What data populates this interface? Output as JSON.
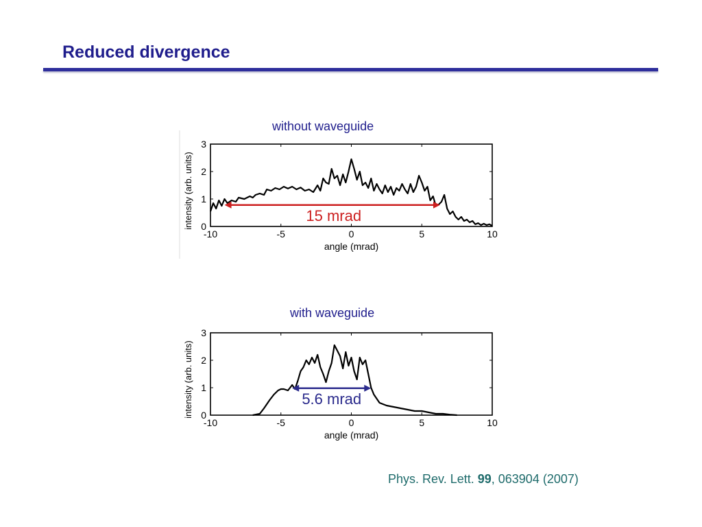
{
  "slide": {
    "title": "Reduced divergence"
  },
  "citation": {
    "journal": "Phys. Rev. Lett.",
    "volume": "99",
    "rest": ", 063904 (2007)"
  },
  "chart_data": [
    {
      "type": "line",
      "title": "without waveguide",
      "xlabel": "angle (mrad)",
      "ylabel": "intensity (arb. units)",
      "xlim": [
        -10,
        10
      ],
      "ylim": [
        0,
        3
      ],
      "xticks": [
        -10,
        -5,
        0,
        5,
        10
      ],
      "yticks": [
        0,
        1,
        2,
        3
      ],
      "annotation": {
        "text": "15 mrad",
        "from": -9.0,
        "to": 6.3,
        "y": 0.78,
        "color": "#cc1f1f"
      },
      "series": [
        {
          "x": [
            -10,
            -9.8,
            -9.6,
            -9.4,
            -9.2,
            -9.0,
            -8.8,
            -8.5,
            -8.2,
            -8.0,
            -7.6,
            -7.2,
            -7.0,
            -6.8,
            -6.5,
            -6.2,
            -6.0,
            -5.7,
            -5.4,
            -5.1,
            -4.8,
            -4.5,
            -4.2,
            -3.9,
            -3.6,
            -3.3,
            -3.0,
            -2.7,
            -2.4,
            -2.2,
            -2.0,
            -1.8,
            -1.6,
            -1.4,
            -1.2,
            -1.0,
            -0.8,
            -0.6,
            -0.4,
            -0.2,
            0.0,
            0.2,
            0.4,
            0.6,
            0.8,
            1.0,
            1.2,
            1.4,
            1.6,
            1.8,
            2.0,
            2.2,
            2.4,
            2.6,
            2.8,
            3.0,
            3.2,
            3.4,
            3.6,
            3.8,
            4.0,
            4.2,
            4.4,
            4.6,
            4.8,
            5.0,
            5.2,
            5.4,
            5.6,
            5.8,
            6.0,
            6.2,
            6.4,
            6.6,
            6.8,
            7.0,
            7.2,
            7.4,
            7.6,
            7.8,
            8.0,
            8.2,
            8.4,
            8.6,
            8.8,
            9.0,
            9.2,
            9.4,
            9.6,
            9.8,
            10.0
          ],
          "y": [
            0.55,
            0.85,
            0.65,
            0.95,
            0.75,
            1.0,
            0.85,
            0.95,
            0.9,
            1.05,
            1.0,
            1.1,
            1.05,
            1.15,
            1.2,
            1.15,
            1.35,
            1.3,
            1.4,
            1.35,
            1.45,
            1.38,
            1.45,
            1.35,
            1.42,
            1.3,
            1.35,
            1.25,
            1.5,
            1.3,
            1.75,
            1.6,
            1.55,
            2.1,
            1.75,
            1.85,
            1.5,
            1.9,
            1.6,
            2.0,
            2.45,
            2.1,
            1.7,
            2.0,
            1.5,
            1.6,
            1.4,
            1.75,
            1.3,
            1.55,
            1.35,
            1.2,
            1.5,
            1.25,
            1.45,
            1.15,
            1.4,
            1.3,
            1.55,
            1.35,
            1.2,
            1.55,
            1.25,
            1.45,
            1.85,
            1.6,
            1.3,
            1.45,
            0.95,
            1.1,
            0.75,
            0.8,
            0.9,
            1.15,
            0.65,
            0.45,
            0.55,
            0.35,
            0.25,
            0.35,
            0.2,
            0.25,
            0.15,
            0.2,
            0.08,
            0.12,
            0.05,
            0.1,
            0.05,
            0.08,
            0.02
          ]
        }
      ]
    },
    {
      "type": "line",
      "title": "with waveguide",
      "xlabel": "angle (mrad)",
      "ylabel": "intensity (arb. units)",
      "xlim": [
        -10,
        10
      ],
      "ylim": [
        0,
        3
      ],
      "xticks": [
        -10,
        -5,
        0,
        5,
        10
      ],
      "yticks": [
        0,
        1,
        2,
        3
      ],
      "annotation": {
        "text": "5.6 mrad",
        "from": -4.2,
        "to": 1.4,
        "y": 0.98,
        "color": "#2a2a8c"
      },
      "series": [
        {
          "x": [
            -7.0,
            -6.5,
            -6.2,
            -6.0,
            -5.8,
            -5.5,
            -5.2,
            -5.0,
            -4.8,
            -4.5,
            -4.2,
            -4.0,
            -3.8,
            -3.6,
            -3.4,
            -3.2,
            -3.0,
            -2.8,
            -2.6,
            -2.4,
            -2.2,
            -2.0,
            -1.8,
            -1.6,
            -1.4,
            -1.2,
            -1.0,
            -0.8,
            -0.6,
            -0.4,
            -0.2,
            0.0,
            0.2,
            0.4,
            0.6,
            0.8,
            1.0,
            1.2,
            1.4,
            1.6,
            1.8,
            2.0,
            2.5,
            3.0,
            3.5,
            4.0,
            4.5,
            5.0,
            5.5,
            6.0,
            6.5,
            7.0,
            7.5
          ],
          "y": [
            0.0,
            0.05,
            0.25,
            0.4,
            0.55,
            0.75,
            0.9,
            0.95,
            0.95,
            0.9,
            1.1,
            0.95,
            1.25,
            1.6,
            1.75,
            2.0,
            1.85,
            2.1,
            1.9,
            2.2,
            1.75,
            1.5,
            1.2,
            1.6,
            1.9,
            2.55,
            2.35,
            2.15,
            1.7,
            2.3,
            1.8,
            2.1,
            1.6,
            1.3,
            2.1,
            1.85,
            2.0,
            1.5,
            1.0,
            0.75,
            0.6,
            0.45,
            0.35,
            0.3,
            0.25,
            0.2,
            0.15,
            0.15,
            0.1,
            0.05,
            0.05,
            0.02,
            0.0
          ]
        }
      ]
    }
  ]
}
